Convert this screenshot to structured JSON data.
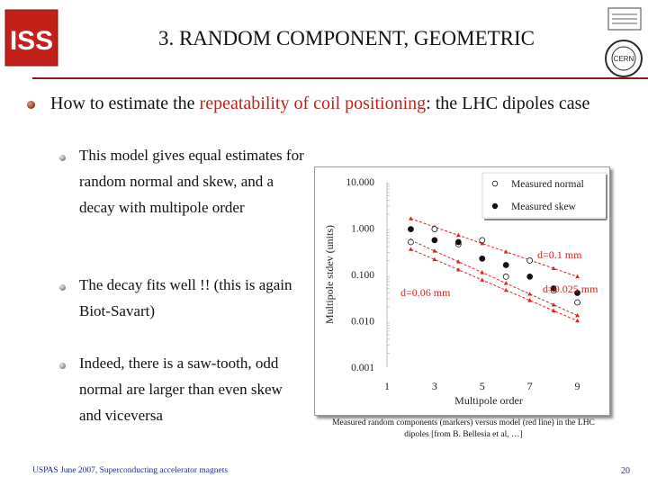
{
  "header": {
    "title": "3. RANDOM COMPONENT, GEOMETRIC",
    "left_logo_text": "ISS",
    "right_logo_text": "CERN"
  },
  "body": {
    "lead": {
      "prefix": "How to estimate the ",
      "highlight": "repeatability of coil positioning",
      "suffix": ": the LHC dipoles case"
    },
    "points": [
      "This model gives equal estimates for random normal and skew, and a decay with multipole order",
      "The decay fits well !! (this is again Biot-Savart)",
      "Indeed, there is a saw-tooth, odd normal are larger than even skew and viceversa"
    ]
  },
  "figure": {
    "caption": "Measured random components (markers) versus model (red line) in the LHC dipoles [from B. Bellesia et al, …]"
  },
  "chart_data": {
    "type": "scatter",
    "xlabel": "Multipole order",
    "ylabel": "Multipole stdev (units)",
    "yscale": "log",
    "ylim": [
      0.001,
      10
    ],
    "xlim": [
      1,
      10
    ],
    "xticks": [
      1,
      3,
      5,
      7,
      9
    ],
    "yticks": [
      10,
      1,
      0.1,
      0.01,
      0.001
    ],
    "yticklabels": [
      "10.000",
      "1.000",
      "0.100",
      "0.010",
      "0.001"
    ],
    "legend_position": "top-right",
    "series": [
      {
        "name": "Measured normal",
        "marker": "open-circle",
        "x": [
          2,
          3,
          4,
          5,
          6,
          7,
          8,
          9
        ],
        "y": [
          0.5,
          0.95,
          0.45,
          0.55,
          0.09,
          0.2,
          0.045,
          0.025
        ]
      },
      {
        "name": "Measured skew",
        "marker": "filled-circle",
        "x": [
          2,
          3,
          4,
          5,
          6,
          7,
          8,
          9
        ],
        "y": [
          0.95,
          0.55,
          0.5,
          0.22,
          0.16,
          0.09,
          0.05,
          0.04
        ]
      }
    ],
    "model_lines": [
      {
        "label": "d=0.1 mm",
        "x": [
          2,
          9
        ],
        "y": [
          1.6,
          0.09
        ]
      },
      {
        "label": "d=0.06 mm",
        "x": [
          2,
          9
        ],
        "y": [
          0.55,
          0.013
        ]
      },
      {
        "label": "d=0.025 mm",
        "x": [
          2,
          9
        ],
        "y": [
          0.35,
          0.01
        ]
      }
    ],
    "annotations": [
      "d=0.1 mm",
      "d=0.06 mm",
      "d=0.025 mm"
    ],
    "colors": {
      "model": "#e0211b",
      "annotation": "#e0211b",
      "markers": "#111111"
    }
  },
  "footer": {
    "left": "USPAS June 2007, Superconducting accelerator magnets",
    "page": "20"
  },
  "colors": {
    "rule": "#8a1d12",
    "highlight": "#c0221a",
    "footer": "#1f2f8c"
  }
}
